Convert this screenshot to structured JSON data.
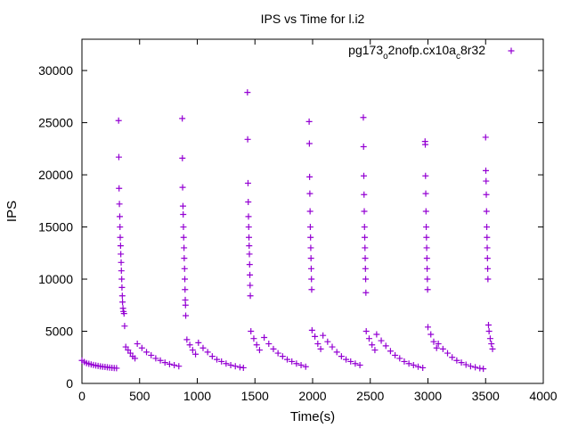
{
  "chart_data": {
    "type": "scatter",
    "title": "IPS vs Time for l.i2",
    "xlabel": "Time(s)",
    "ylabel": "IPS",
    "xlim": [
      0,
      4000
    ],
    "ylim": [
      0,
      33000
    ],
    "xticks": [
      "0",
      "500",
      "1000",
      "1500",
      "2000",
      "2500",
      "3000",
      "3500",
      "4000"
    ],
    "yticks": [
      "0",
      "5000",
      "10000",
      "15000",
      "20000",
      "25000",
      "30000"
    ],
    "grid": false,
    "legend_position": "top-right",
    "marker": "+",
    "series": [
      {
        "name_main": "pg173",
        "name_sub1": "o",
        "name_mid": "2nofp.cx10a",
        "name_sub2": "c",
        "name_end": "8r32",
        "color": "#9400d3",
        "points": [
          [
            0,
            2200
          ],
          [
            20,
            2050
          ],
          [
            40,
            1950
          ],
          [
            60,
            1880
          ],
          [
            80,
            1820
          ],
          [
            100,
            1760
          ],
          [
            120,
            1720
          ],
          [
            140,
            1680
          ],
          [
            160,
            1640
          ],
          [
            180,
            1600
          ],
          [
            200,
            1580
          ],
          [
            220,
            1550
          ],
          [
            240,
            1520
          ],
          [
            260,
            1500
          ],
          [
            280,
            1480
          ],
          [
            300,
            1460
          ],
          [
            318,
            25200
          ],
          [
            320,
            21700
          ],
          [
            322,
            18700
          ],
          [
            325,
            17200
          ],
          [
            328,
            16000
          ],
          [
            330,
            15000
          ],
          [
            332,
            14000
          ],
          [
            335,
            13200
          ],
          [
            337,
            12400
          ],
          [
            340,
            11600
          ],
          [
            342,
            10800
          ],
          [
            345,
            10000
          ],
          [
            347,
            9200
          ],
          [
            350,
            8400
          ],
          [
            352,
            7800
          ],
          [
            356,
            7200
          ],
          [
            360,
            6900
          ],
          [
            365,
            6700
          ],
          [
            370,
            5500
          ],
          [
            380,
            3500
          ],
          [
            400,
            3200
          ],
          [
            420,
            2900
          ],
          [
            440,
            2600
          ],
          [
            460,
            2400
          ],
          [
            480,
            3800
          ],
          [
            520,
            3400
          ],
          [
            560,
            3000
          ],
          [
            600,
            2700
          ],
          [
            640,
            2400
          ],
          [
            680,
            2200
          ],
          [
            720,
            2000
          ],
          [
            760,
            1850
          ],
          [
            800,
            1750
          ],
          [
            840,
            1650
          ],
          [
            870,
            25400
          ],
          [
            871,
            21600
          ],
          [
            873,
            18800
          ],
          [
            876,
            17000
          ],
          [
            878,
            16200
          ],
          [
            880,
            15000
          ],
          [
            882,
            14000
          ],
          [
            885,
            13000
          ],
          [
            887,
            12000
          ],
          [
            890,
            11000
          ],
          [
            892,
            10000
          ],
          [
            894,
            9000
          ],
          [
            896,
            8000
          ],
          [
            898,
            7500
          ],
          [
            900,
            6500
          ],
          [
            910,
            4200
          ],
          [
            935,
            3700
          ],
          [
            960,
            3200
          ],
          [
            985,
            2800
          ],
          [
            1010,
            3900
          ],
          [
            1050,
            3400
          ],
          [
            1090,
            3000
          ],
          [
            1130,
            2600
          ],
          [
            1170,
            2300
          ],
          [
            1210,
            2100
          ],
          [
            1250,
            1900
          ],
          [
            1290,
            1750
          ],
          [
            1330,
            1650
          ],
          [
            1370,
            1550
          ],
          [
            1400,
            1500
          ],
          [
            1435,
            27900
          ],
          [
            1437,
            23400
          ],
          [
            1440,
            19200
          ],
          [
            1442,
            17400
          ],
          [
            1444,
            16000
          ],
          [
            1446,
            15000
          ],
          [
            1448,
            14000
          ],
          [
            1450,
            13200
          ],
          [
            1452,
            12400
          ],
          [
            1454,
            11400
          ],
          [
            1456,
            10400
          ],
          [
            1458,
            9400
          ],
          [
            1460,
            8400
          ],
          [
            1465,
            5000
          ],
          [
            1490,
            4300
          ],
          [
            1515,
            3700
          ],
          [
            1540,
            3200
          ],
          [
            1580,
            4400
          ],
          [
            1620,
            3800
          ],
          [
            1660,
            3300
          ],
          [
            1700,
            2900
          ],
          [
            1740,
            2600
          ],
          [
            1780,
            2300
          ],
          [
            1820,
            2100
          ],
          [
            1860,
            1900
          ],
          [
            1900,
            1750
          ],
          [
            1940,
            1600
          ],
          [
            1970,
            25100
          ],
          [
            1972,
            23000
          ],
          [
            1974,
            19800
          ],
          [
            1976,
            18200
          ],
          [
            1978,
            16500
          ],
          [
            1980,
            15000
          ],
          [
            1982,
            14000
          ],
          [
            1984,
            13000
          ],
          [
            1986,
            12000
          ],
          [
            1988,
            11000
          ],
          [
            1990,
            10000
          ],
          [
            1992,
            9000
          ],
          [
            1995,
            5100
          ],
          [
            2020,
            4500
          ],
          [
            2045,
            3800
          ],
          [
            2070,
            3300
          ],
          [
            2090,
            4600
          ],
          [
            2130,
            4000
          ],
          [
            2170,
            3500
          ],
          [
            2210,
            3000
          ],
          [
            2250,
            2600
          ],
          [
            2290,
            2300
          ],
          [
            2330,
            2100
          ],
          [
            2370,
            1900
          ],
          [
            2410,
            1750
          ],
          [
            2440,
            25500
          ],
          [
            2442,
            22700
          ],
          [
            2444,
            19900
          ],
          [
            2446,
            18100
          ],
          [
            2448,
            16500
          ],
          [
            2450,
            15000
          ],
          [
            2452,
            14000
          ],
          [
            2454,
            13000
          ],
          [
            2456,
            12000
          ],
          [
            2458,
            11000
          ],
          [
            2460,
            10000
          ],
          [
            2462,
            8700
          ],
          [
            2465,
            5000
          ],
          [
            2490,
            4300
          ],
          [
            2515,
            3700
          ],
          [
            2540,
            3200
          ],
          [
            2555,
            4700
          ],
          [
            2595,
            4100
          ],
          [
            2635,
            3600
          ],
          [
            2675,
            3100
          ],
          [
            2715,
            2700
          ],
          [
            2755,
            2400
          ],
          [
            2795,
            2100
          ],
          [
            2835,
            1900
          ],
          [
            2875,
            1750
          ],
          [
            2915,
            1600
          ],
          [
            2955,
            1500
          ],
          [
            2975,
            23200
          ],
          [
            2977,
            22900
          ],
          [
            2979,
            19900
          ],
          [
            2981,
            18200
          ],
          [
            2983,
            16500
          ],
          [
            2985,
            15000
          ],
          [
            2987,
            14000
          ],
          [
            2989,
            13000
          ],
          [
            2991,
            12000
          ],
          [
            2993,
            11000
          ],
          [
            2995,
            10000
          ],
          [
            2997,
            9000
          ],
          [
            3000,
            5400
          ],
          [
            3025,
            4700
          ],
          [
            3050,
            4000
          ],
          [
            3075,
            3400
          ],
          [
            3090,
            3800
          ],
          [
            3130,
            3300
          ],
          [
            3170,
            2900
          ],
          [
            3210,
            2500
          ],
          [
            3250,
            2200
          ],
          [
            3290,
            2000
          ],
          [
            3330,
            1800
          ],
          [
            3370,
            1650
          ],
          [
            3410,
            1550
          ],
          [
            3450,
            1450
          ],
          [
            3480,
            1400
          ],
          [
            3500,
            23600
          ],
          [
            3502,
            20400
          ],
          [
            3504,
            19400
          ],
          [
            3506,
            18100
          ],
          [
            3508,
            16500
          ],
          [
            3510,
            15000
          ],
          [
            3512,
            14000
          ],
          [
            3514,
            13000
          ],
          [
            3516,
            12000
          ],
          [
            3518,
            11000
          ],
          [
            3520,
            10000
          ],
          [
            3525,
            5600
          ],
          [
            3530,
            5000
          ],
          [
            3540,
            4300
          ],
          [
            3550,
            3800
          ],
          [
            3560,
            3300
          ]
        ]
      }
    ]
  }
}
